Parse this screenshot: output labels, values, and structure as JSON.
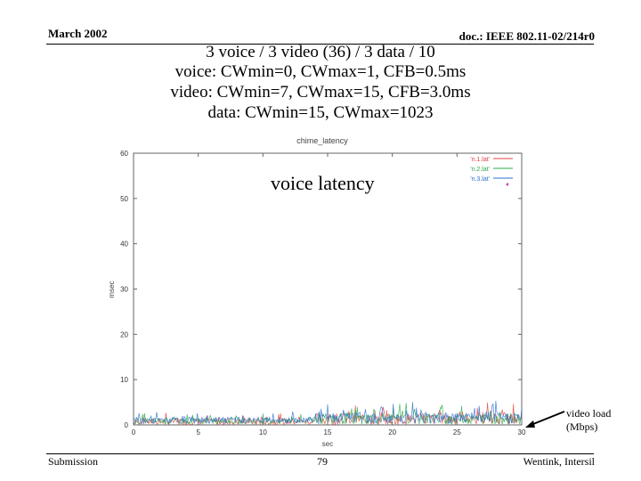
{
  "header": {
    "date": "March 2002",
    "doc_id": "doc.: IEEE 802.11-02/214r0"
  },
  "title_lines": [
    "3 voice / 3 video (36) / 3 data / 10",
    "voice: CWmin=0, CWmax=1, CFB=0.5ms",
    "video: CWmin=7, CWmax=15, CFB=3.0ms",
    "data: CWmin=15, CWmax=1023"
  ],
  "chart_data": {
    "type": "line",
    "title": "chime_latency",
    "overlay_label": "voice latency",
    "xlabel": "sec",
    "ylabel": "msec",
    "xlim": [
      0,
      30
    ],
    "ylim": [
      0,
      60
    ],
    "x_ticks": [
      0,
      5,
      10,
      15,
      20,
      25,
      30
    ],
    "y_ticks": [
      0,
      10,
      20,
      30,
      40,
      50,
      60
    ],
    "legend_position": "top-right",
    "series": [
      {
        "name": "'n.1.lat'",
        "color": "#e04040"
      },
      {
        "name": "'n.2.lat'",
        "color": "#2aa84a"
      },
      {
        "name": "'n.3.lat'",
        "color": "#2a6fd0"
      }
    ],
    "extra_series": {
      "name": "video load (Mbps)",
      "color": "#c03ac0"
    }
  },
  "annotation": {
    "line1": "video load",
    "line2": "(Mbps)"
  },
  "footer": {
    "left": "Submission",
    "page": "79",
    "right": "Wentink, Intersil"
  }
}
